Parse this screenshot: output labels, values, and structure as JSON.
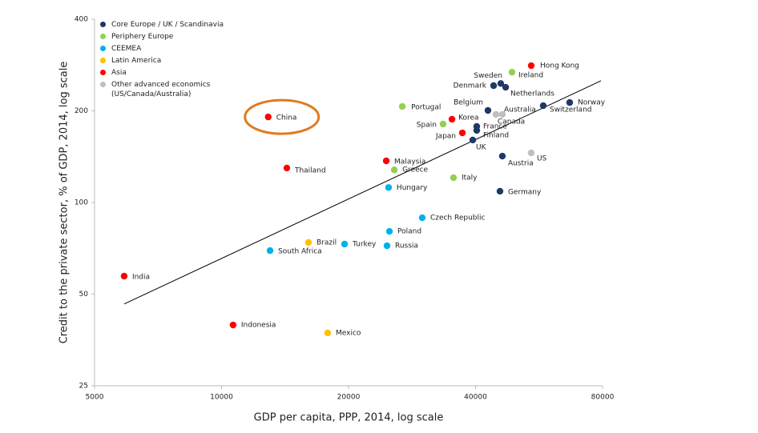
{
  "chart_data": {
    "type": "scatter",
    "x_label": "GDP per capita, PPP, 2014, log scale",
    "y_label": "Credit to the private sector, % of GDP, 2014, log scale",
    "xlog": true,
    "ylog": true,
    "xlim": [
      5000,
      80000
    ],
    "ylim": [
      25,
      400
    ],
    "xticks": [
      5000,
      10000,
      20000,
      40000,
      80000
    ],
    "yticks": [
      25,
      50,
      100,
      200,
      400
    ],
    "trendline": {
      "x": [
        5877,
        79300
      ],
      "values": [
        46.4,
        251
      ],
      "color": "#000000"
    },
    "highlight_color": "#e07b1f",
    "series": [
      {
        "name": "Core Europe / UK / Scandinavia",
        "color": "#1f3864",
        "labels": [
          "Belgium",
          "France",
          "Finland",
          "UK",
          "Austria",
          "Germany",
          "Denmark",
          "Sweden",
          "Netherlands",
          "Switzerland",
          "Norway"
        ],
        "x": [
          42800,
          40260,
          40260,
          39400,
          46300,
          45700,
          44140,
          45900,
          47140,
          57880,
          66860
        ],
        "values": [
          200.6,
          177.8,
          172.5,
          160.4,
          142,
          108.9,
          242,
          246,
          239,
          208,
          213
        ]
      },
      {
        "name": "Periphery Europe",
        "color": "#92d050",
        "labels": [
          "Portugal",
          "Spain",
          "Greece",
          "Italy",
          "Ireland"
        ],
        "x": [
          26820,
          33500,
          25670,
          35460,
          48800
        ],
        "values": [
          206.8,
          181,
          128,
          120.6,
          268
        ]
      },
      {
        "name": "CEEMEA",
        "color": "#00b0f0",
        "labels": [
          "South Africa",
          "Turkey",
          "Russia",
          "Poland",
          "Czech Republic",
          "Hungary"
        ],
        "x": [
          13030,
          19570,
          24670,
          25000,
          29900,
          24880
        ],
        "values": [
          69.5,
          73,
          72.1,
          80.4,
          89.1,
          112
        ]
      },
      {
        "name": "Latin America",
        "color": "#ffc000",
        "labels": [
          "Brazil",
          "Mexico"
        ],
        "x": [
          16070,
          17850
        ],
        "values": [
          73.9,
          37.3
        ]
      },
      {
        "name": "Asia",
        "color": "#ff0000",
        "labels": [
          "India",
          "Indonesia",
          "Thailand",
          "China",
          "Malaysia",
          "Korea",
          "Japan",
          "Hong Kong"
        ],
        "x": [
          5877,
          10650,
          14280,
          12900,
          24570,
          35170,
          37220,
          54200
        ],
        "values": [
          57.3,
          39.6,
          129.8,
          191,
          137,
          187.7,
          169.3,
          281.5
        ]
      },
      {
        "name": "Other advanced economics (US/Canada/Australia)",
        "color": "#bfbfbf",
        "labels": [
          "Australia",
          "Canada",
          "US"
        ],
        "x": [
          44720,
          46300,
          54200
        ],
        "values": [
          194.7,
          194.7,
          145.5
        ]
      }
    ]
  }
}
